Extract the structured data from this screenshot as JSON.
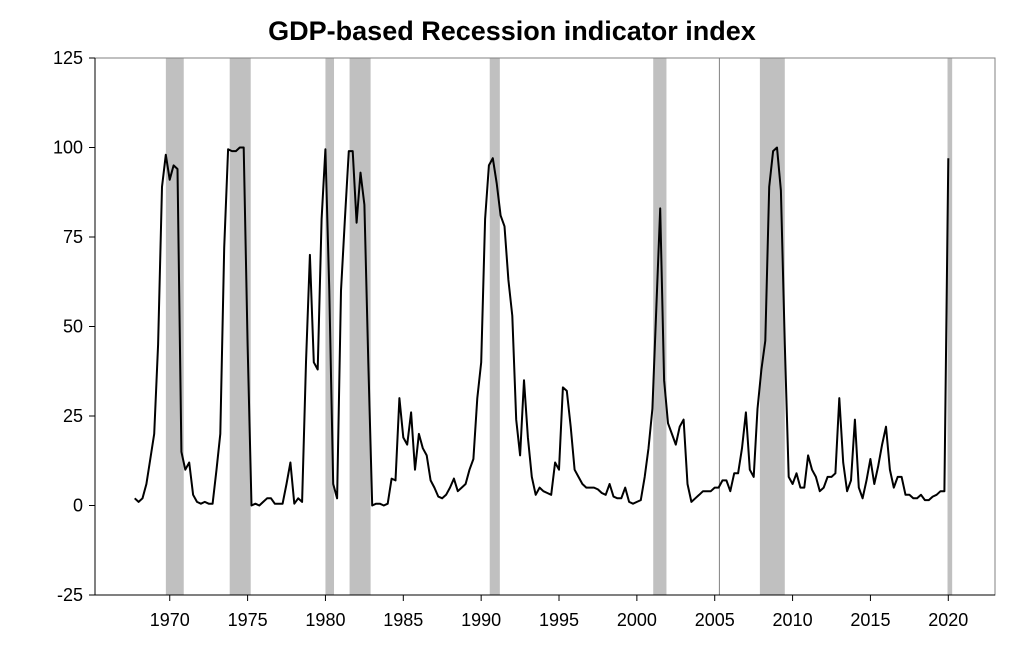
{
  "chart_data": {
    "type": "line",
    "title": "GDP-based Recession indicator index",
    "xlabel": "",
    "ylabel": "",
    "xlim": [
      1965.2,
      2023.0
    ],
    "ylim": [
      -25,
      125
    ],
    "yticks": [
      -25,
      0,
      25,
      50,
      75,
      100,
      125
    ],
    "xticks": [
      1970,
      1975,
      1980,
      1985,
      1990,
      1995,
      2000,
      2005,
      2010,
      2015,
      2020
    ],
    "grid": false,
    "legend": "none",
    "colors": {
      "line": "#000000",
      "recession": "#c0c0c0",
      "axis": "#000000",
      "ref_line": "#808080"
    },
    "reference_line_x": 2005.3,
    "recessions": [
      [
        1969.75,
        1970.9
      ],
      [
        1973.85,
        1975.2
      ],
      [
        1980.0,
        1980.55
      ],
      [
        1981.55,
        1982.9
      ],
      [
        1990.55,
        1991.2
      ],
      [
        2001.05,
        2001.9
      ],
      [
        2007.9,
        2009.5
      ],
      [
        2019.95,
        2020.25
      ]
    ],
    "series": [
      {
        "x": [
          1967.75,
          1968.0,
          1968.25,
          1968.5,
          1968.75,
          1969.0,
          1969.25,
          1969.5,
          1969.75,
          1970.0,
          1970.25,
          1970.5,
          1970.75,
          1971.0,
          1971.25,
          1971.5,
          1971.75,
          1972.0,
          1972.25,
          1972.5,
          1972.75,
          1973.0,
          1973.25,
          1973.5,
          1973.75,
          1974.0,
          1974.25,
          1974.5,
          1974.75,
          1975.0,
          1975.25,
          1975.5,
          1975.75,
          1976.0,
          1976.25,
          1976.5,
          1976.75,
          1977.0,
          1977.25,
          1977.5,
          1977.75,
          1978.0,
          1978.25,
          1978.5,
          1978.75,
          1979.0,
          1979.25,
          1979.5,
          1979.75,
          1980.0,
          1980.25,
          1980.5,
          1980.75,
          1981.0,
          1981.25,
          1981.5,
          1981.75,
          1982.0,
          1982.25,
          1982.5,
          1982.75,
          1983.0,
          1983.25,
          1983.5,
          1983.75,
          1984.0,
          1984.25,
          1984.5,
          1984.75,
          1985.0,
          1985.25,
          1985.5,
          1985.75,
          1986.0,
          1986.25,
          1986.5,
          1986.75,
          1987.0,
          1987.25,
          1987.5,
          1987.75,
          1988.0,
          1988.25,
          1988.5,
          1988.75,
          1989.0,
          1989.25,
          1989.5,
          1989.75,
          1990.0,
          1990.25,
          1990.5,
          1990.75,
          1991.0,
          1991.25,
          1991.5,
          1991.75,
          1992.0,
          1992.25,
          1992.5,
          1992.75,
          1993.0,
          1993.25,
          1993.5,
          1993.75,
          1994.0,
          1994.25,
          1994.5,
          1994.75,
          1995.0,
          1995.25,
          1995.5,
          1995.75,
          1996.0,
          1996.25,
          1996.5,
          1996.75,
          1997.0,
          1997.25,
          1997.5,
          1997.75,
          1998.0,
          1998.25,
          1998.5,
          1998.75,
          1999.0,
          1999.25,
          1999.5,
          1999.75,
          2000.0,
          2000.25,
          2000.5,
          2000.75,
          2001.0,
          2001.25,
          2001.5,
          2001.75,
          2002.0,
          2002.25,
          2002.5,
          2002.75,
          2003.0,
          2003.25,
          2003.5,
          2003.75,
          2004.0,
          2004.25,
          2004.5,
          2004.75,
          2005.0,
          2005.25,
          2005.5,
          2005.75,
          2006.0,
          2006.25,
          2006.5,
          2006.75,
          2007.0,
          2007.25,
          2007.5,
          2007.75,
          2008.0,
          2008.25,
          2008.5,
          2008.75,
          2009.0,
          2009.25,
          2009.5,
          2009.75,
          2010.0,
          2010.25,
          2010.5,
          2010.75,
          2011.0,
          2011.25,
          2011.5,
          2011.75,
          2012.0,
          2012.25,
          2012.5,
          2012.75,
          2013.0,
          2013.25,
          2013.5,
          2013.75,
          2014.0,
          2014.25,
          2014.5,
          2014.75,
          2015.0,
          2015.25,
          2015.5,
          2015.75,
          2016.0,
          2016.25,
          2016.5,
          2016.75,
          2017.0,
          2017.25,
          2017.5,
          2017.75,
          2018.0,
          2018.25,
          2018.5,
          2018.75,
          2019.0,
          2019.25,
          2019.5,
          2019.75,
          2020.0
        ],
        "values": [
          2,
          1,
          2,
          6,
          13,
          20,
          45,
          89,
          98,
          91,
          95,
          94,
          15,
          10,
          12,
          3,
          1,
          0.5,
          1,
          0.5,
          0.5,
          10,
          20,
          72,
          99.5,
          99,
          99,
          100,
          100,
          45,
          0,
          0.5,
          0,
          1,
          2,
          2,
          0.5,
          0.5,
          0.5,
          6,
          12,
          0.5,
          2,
          1,
          40,
          70,
          40,
          38,
          80,
          99.5,
          60,
          6,
          2,
          60,
          80,
          99,
          99,
          79,
          93,
          84,
          40,
          0,
          0.5,
          0.5,
          0,
          0.5,
          7.5,
          7,
          30,
          19,
          17,
          26,
          10,
          20,
          16,
          14,
          7,
          5,
          2.5,
          2,
          3,
          5,
          7.5,
          4,
          5,
          6,
          10,
          13,
          30,
          40,
          80,
          95,
          97,
          90,
          81,
          78,
          63,
          53,
          24,
          14,
          35,
          19,
          8,
          3,
          5,
          4,
          3.5,
          3,
          12,
          10,
          33,
          32,
          22,
          10,
          8,
          6,
          5,
          5,
          5,
          4.5,
          3.5,
          3,
          6,
          2.5,
          2,
          2,
          5,
          1,
          0.5,
          1,
          1.5,
          8,
          16,
          27,
          55,
          83,
          35,
          23,
          20,
          17,
          22,
          24,
          6,
          1,
          2,
          3,
          4,
          4,
          4,
          5,
          5,
          7,
          7,
          4,
          9,
          9,
          16,
          26,
          10,
          8,
          27,
          38,
          46,
          89,
          99,
          100,
          88,
          45,
          8,
          6,
          9,
          5,
          5,
          14,
          10,
          8,
          4,
          5,
          8,
          8,
          9,
          30,
          12,
          4,
          7,
          24,
          5,
          2,
          7,
          13,
          6,
          11,
          17,
          22,
          10,
          5,
          8,
          8,
          3,
          3,
          2,
          2,
          3,
          1.5,
          1.5,
          2.5,
          3,
          4,
          4,
          97
        ]
      }
    ]
  }
}
